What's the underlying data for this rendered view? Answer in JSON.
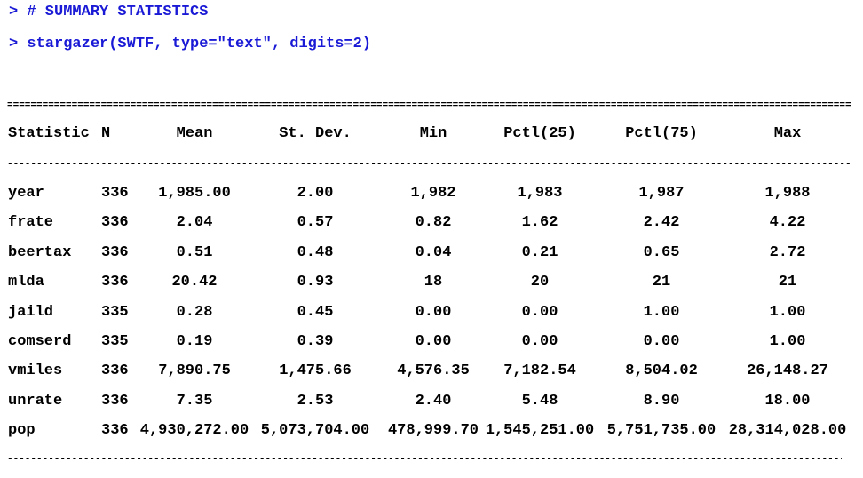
{
  "console": {
    "prompt": ">",
    "line1": "> # SUMMARY STATISTICS",
    "line2": "> stargazer(SWTF, type=\"text\", digits=2)"
  },
  "table": {
    "header": [
      "Statistic",
      "N",
      "Mean",
      "St. Dev.",
      "Min",
      "Pctl(25)",
      "Pctl(75)",
      "Max"
    ],
    "rows": [
      [
        "year",
        "336",
        "1,985.00",
        "2.00",
        "1,982",
        "1,983",
        "1,987",
        "1,988"
      ],
      [
        "frate",
        "336",
        "2.04",
        "0.57",
        "0.82",
        "1.62",
        "2.42",
        "4.22"
      ],
      [
        "beertax",
        "336",
        "0.51",
        "0.48",
        "0.04",
        "0.21",
        "0.65",
        "2.72"
      ],
      [
        "mlda",
        "336",
        "20.42",
        "0.93",
        "18",
        "20",
        "21",
        "21"
      ],
      [
        "jaild",
        "335",
        "0.28",
        "0.45",
        "0.00",
        "0.00",
        "1.00",
        "1.00"
      ],
      [
        "comserd",
        "335",
        "0.19",
        "0.39",
        "0.00",
        "0.00",
        "0.00",
        "1.00"
      ],
      [
        "vmiles",
        "336",
        "7,890.75",
        "1,475.66",
        "4,576.35",
        "7,182.54",
        "8,504.02",
        "26,148.27"
      ],
      [
        "unrate",
        "336",
        "7.35",
        "2.53",
        "2.40",
        "5.48",
        "8.90",
        "18.00"
      ],
      [
        "pop",
        "336",
        "4,930,272.00",
        "5,073,704.00",
        "478,999.70",
        "1,545,251.00",
        "5,751,735.00",
        "28,314,028.00"
      ]
    ],
    "rule_double": "=====================================================================================================================================================================================",
    "rule_single": "---------------------------------------------------------------------------------------------------------------------------------------------------------------------------------------------"
  },
  "colors": {
    "console_text": "#1a1ad6",
    "output_text": "#000000",
    "background": "#ffffff"
  }
}
